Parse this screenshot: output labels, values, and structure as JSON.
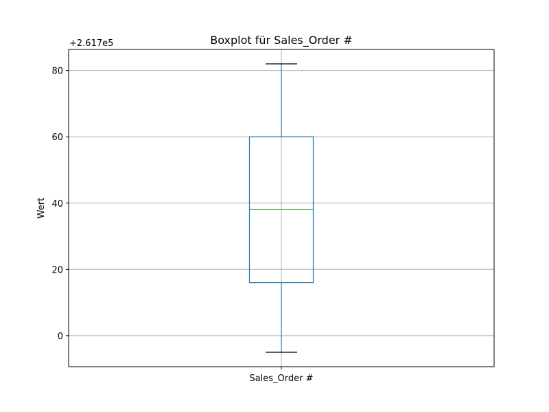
{
  "chart_data": {
    "type": "boxplot",
    "title": "Boxplot für Sales_Order #",
    "xlabel": "",
    "ylabel": "Wert",
    "offset_label": "+2.617e5",
    "categories": [
      "Sales_Order #"
    ],
    "boxes": [
      {
        "name": "Sales_Order #",
        "whisker_low": -5,
        "q1": 16,
        "median": 38,
        "q3": 60,
        "whisker_high": 82
      }
    ],
    "y_ticks": [
      0,
      20,
      40,
      60,
      80
    ],
    "ylim": [
      -9.35,
      86.35
    ],
    "grid": true,
    "colors": {
      "box": "#1f77b4",
      "median": "#2ca02c",
      "caps": "#000000",
      "grid": "#b0b0b0",
      "axes": "#000000"
    }
  }
}
